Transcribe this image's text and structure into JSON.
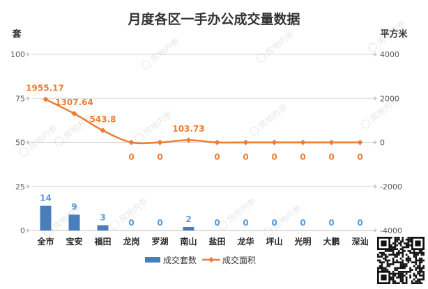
{
  "chart_data": {
    "type": "bar+line",
    "title": "月度各区一手办公成交量数据",
    "ylabel_left": "套",
    "ylabel_right": "平方米",
    "categories": [
      "全市",
      "宝安",
      "福田",
      "龙岗",
      "罗湖",
      "南山",
      "盐田",
      "龙华",
      "坪山",
      "光明",
      "大鹏",
      "深汕"
    ],
    "ylim_left": [
      0,
      100
    ],
    "yticks_left": [
      "0",
      "25",
      "50",
      "75",
      "100"
    ],
    "ylim_right": [
      -4000,
      4000
    ],
    "yticks_right": [
      "-4000",
      "-2000",
      "0",
      "2000",
      "4000"
    ],
    "grid": true,
    "legend_position": "bottom",
    "series": [
      {
        "name": "成交套数",
        "type": "bar",
        "axis": "left",
        "color": "#4a7ebb",
        "label_color": "#5b9bd5",
        "values": [
          14,
          9,
          3,
          0,
          0,
          2,
          0,
          0,
          0,
          0,
          0,
          0
        ],
        "labels": [
          "14",
          "9",
          "3",
          "0",
          "0",
          "2",
          "0",
          "0",
          "0",
          "0",
          "0",
          "0"
        ]
      },
      {
        "name": "成交面积",
        "type": "line",
        "axis": "right",
        "color": "#ed7d31",
        "values": [
          1955.17,
          1307.64,
          543.8,
          0,
          0,
          103.73,
          0,
          0,
          0,
          0,
          0,
          0
        ],
        "labels": [
          "1955.17",
          "1307.64",
          "543.8",
          "0",
          "0",
          "103.73",
          "0",
          "0",
          "0",
          "0",
          "0",
          "0"
        ]
      }
    ],
    "watermark": "房地内参"
  }
}
